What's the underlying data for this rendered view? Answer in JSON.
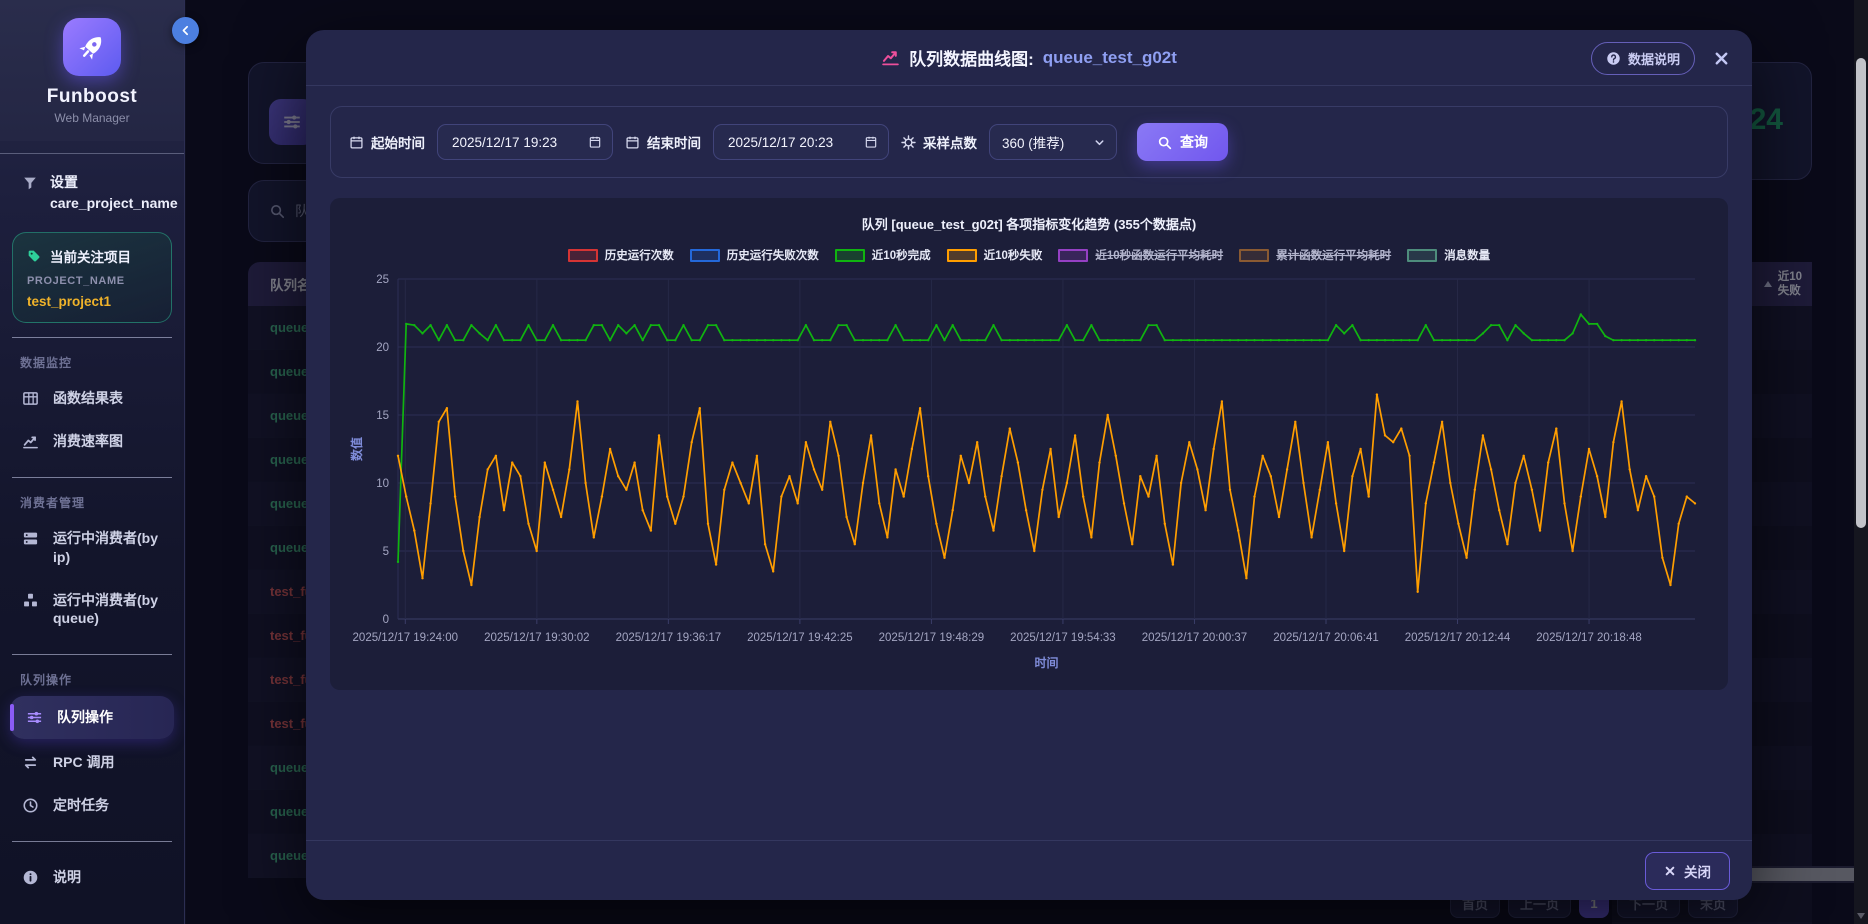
{
  "app": {
    "name": "Funboost",
    "subtitle": "Web Manager"
  },
  "sidebar": {
    "filter": {
      "line1": "设置",
      "line2": "care_project_name"
    },
    "project_card": {
      "title": "当前关注项目",
      "label": "PROJECT_NAME",
      "value": "test_project1"
    },
    "sections": [
      {
        "label": "数据监控",
        "items": [
          {
            "icon": "table",
            "label": "函数结果表"
          },
          {
            "icon": "chart-line",
            "label": "消费速率图"
          }
        ]
      },
      {
        "label": "消费者管理",
        "items": [
          {
            "icon": "server",
            "label": "运行中消费者(by ip)"
          },
          {
            "icon": "cubes",
            "label": "运行中消费者(by queue)"
          }
        ]
      },
      {
        "label": "队列操作",
        "items": [
          {
            "icon": "sliders",
            "label": "队列操作",
            "active": true
          },
          {
            "icon": "exchange",
            "label": "RPC 调用"
          },
          {
            "icon": "clock",
            "label": "定时任务"
          }
        ]
      },
      {
        "label": "",
        "items": [
          {
            "icon": "info",
            "label": "说明"
          }
        ]
      }
    ]
  },
  "background": {
    "search_text": "队列",
    "table_header": "队列名",
    "rows": [
      {
        "text": "queue",
        "color": "green"
      },
      {
        "text": "queue",
        "color": "green"
      },
      {
        "text": "queue",
        "color": "green"
      },
      {
        "text": "queue",
        "color": "green"
      },
      {
        "text": "queue",
        "color": "green"
      },
      {
        "text": "queue",
        "color": "green"
      },
      {
        "text": "test_fu",
        "color": "red"
      },
      {
        "text": "test_fu",
        "color": "red"
      },
      {
        "text": "test_fu",
        "color": "red"
      },
      {
        "text": "test_fu",
        "color": "red"
      },
      {
        "text": "queue",
        "color": "green"
      },
      {
        "text": "queue",
        "color": "green"
      },
      {
        "text": "queue",
        "color": "green"
      }
    ],
    "stat_value": "24",
    "right_col_header_line1": "近10",
    "right_col_header_line2": "失败",
    "pagination": [
      "首页",
      "上一页",
      "1",
      "下一页",
      "末页"
    ],
    "pagination_current": "1"
  },
  "modal": {
    "title": "队列数据曲线图:",
    "queue_name": "queue_test_g02t",
    "help_button": "数据说明",
    "toolbar": {
      "start_label": "起始时间",
      "start_value": "2025/12/17 19:23",
      "end_label": "结束时间",
      "end_value": "2025/12/17 20:23",
      "points_label": "采样点数",
      "points_value": "360 (推荐)",
      "query_label": "查询"
    },
    "close_label": "关闭"
  },
  "chart_data": {
    "type": "line",
    "title": "队列 [queue_test_g02t] 各项指标变化趋势 (355个数据点)",
    "xlabel": "时间",
    "ylabel": "数值",
    "ylim": [
      0,
      25
    ],
    "yticks": [
      0,
      5,
      10,
      15,
      20,
      25
    ],
    "total_points": 355,
    "grid": true,
    "legend_position": "top",
    "x_tick_labels": [
      "2025/12/17 19:24:00",
      "2025/12/17 19:30:02",
      "2025/12/17 19:36:17",
      "2025/12/17 19:42:25",
      "2025/12/17 19:48:29",
      "2025/12/17 19:54:33",
      "2025/12/17 20:00:37",
      "2025/12/17 20:06:41",
      "2025/12/17 20:12:44",
      "2025/12/17 20:18:48"
    ],
    "series": [
      {
        "name": "历史运行次数",
        "color": "#d53434",
        "struck": false,
        "values": null
      },
      {
        "name": "历史运行失败次数",
        "color": "#2468d9",
        "struck": false,
        "values": null
      },
      {
        "name": "近10秒完成",
        "color": "#10b410",
        "struck": false,
        "values": [
          4.2,
          21.7,
          21.6,
          21.0,
          21.6,
          20.5,
          21.6,
          20.5,
          20.5,
          21.6,
          21.0,
          20.5,
          21.6,
          20.5,
          20.5,
          20.5,
          21.6,
          20.5,
          20.5,
          21.6,
          20.5,
          20.5,
          20.5,
          20.5,
          21.6,
          21.6,
          20.5,
          21.6,
          21.0,
          21.6,
          20.5,
          21.6,
          21.6,
          20.5,
          20.5,
          21.6,
          20.5,
          20.5,
          21.6,
          21.6,
          20.5,
          20.5,
          20.5,
          20.5,
          20.5,
          20.5,
          20.5,
          20.5,
          20.5,
          20.5,
          21.6,
          20.5,
          20.5,
          20.5,
          21.6,
          21.6,
          20.5,
          20.5,
          20.5,
          20.5,
          20.5,
          21.6,
          20.5,
          20.5,
          20.5,
          20.5,
          21.6,
          20.5,
          21.6,
          20.5,
          20.5,
          20.5,
          20.5,
          21.6,
          20.5,
          20.5,
          20.5,
          20.5,
          20.5,
          20.5,
          20.5,
          20.5,
          21.6,
          20.5,
          20.5,
          21.6,
          20.5,
          20.5,
          20.5,
          20.5,
          20.5,
          20.5,
          21.6,
          21.6,
          20.5,
          20.5,
          20.5,
          20.5,
          20.5,
          20.5,
          20.5,
          20.5,
          20.5,
          20.5,
          20.5,
          20.5,
          20.5,
          20.5,
          20.5,
          20.5,
          20.5,
          20.5,
          20.5,
          20.5,
          20.5,
          21.6,
          21.0,
          21.6,
          20.5,
          20.5,
          20.5,
          20.5,
          20.5,
          20.5,
          20.5,
          20.5,
          21.6,
          20.5,
          20.5,
          20.5,
          20.5,
          20.5,
          20.5,
          21.0,
          21.6,
          21.6,
          20.5,
          21.6,
          21.0,
          20.5,
          20.5,
          20.5,
          20.5,
          20.5,
          21.0,
          22.4,
          21.7,
          21.7,
          20.8,
          20.5,
          20.5,
          20.5,
          20.5,
          20.5,
          20.5,
          20.5,
          20.5,
          20.5,
          20.5,
          20.5
        ]
      },
      {
        "name": "近10秒失败",
        "color": "#ff9e00",
        "struck": false,
        "values": [
          12.0,
          9.0,
          6.5,
          3.0,
          8.5,
          14.5,
          15.5,
          9.0,
          5.0,
          2.5,
          7.5,
          11.0,
          12.0,
          8.0,
          11.5,
          10.5,
          7.0,
          5.0,
          11.5,
          9.5,
          7.5,
          11.0,
          16.0,
          10.0,
          6.0,
          9.0,
          12.5,
          10.5,
          9.5,
          11.5,
          8.0,
          6.5,
          13.5,
          9.0,
          7.0,
          9.0,
          13.0,
          15.5,
          7.0,
          4.0,
          9.5,
          11.5,
          10.0,
          8.5,
          12.0,
          5.5,
          3.5,
          9.0,
          10.5,
          8.5,
          13.0,
          11.0,
          9.5,
          14.5,
          12.0,
          7.5,
          5.5,
          10.0,
          13.5,
          8.5,
          6.0,
          11.0,
          9.0,
          12.5,
          15.5,
          10.5,
          7.0,
          4.5,
          8.0,
          12.0,
          10.0,
          13.0,
          9.0,
          6.5,
          10.5,
          14.0,
          11.5,
          8.0,
          5.0,
          9.5,
          12.5,
          7.5,
          10.0,
          13.5,
          9.0,
          6.0,
          11.5,
          15.0,
          12.0,
          8.5,
          5.5,
          10.5,
          9.0,
          12.0,
          7.0,
          4.0,
          10.0,
          13.0,
          11.0,
          8.0,
          12.5,
          16.0,
          9.5,
          6.5,
          3.0,
          9.0,
          12.0,
          10.5,
          7.5,
          11.0,
          14.5,
          10.0,
          6.0,
          9.5,
          13.0,
          8.5,
          5.0,
          10.5,
          12.5,
          9.0,
          16.5,
          13.5,
          13.0,
          14.0,
          12.0,
          2.0,
          8.5,
          11.5,
          14.5,
          10.0,
          7.0,
          4.5,
          9.5,
          13.5,
          11.0,
          8.0,
          5.5,
          10.0,
          12.0,
          9.5,
          6.5,
          11.5,
          14.0,
          8.5,
          5.0,
          9.0,
          12.5,
          10.5,
          7.5,
          13.0,
          16.0,
          11.0,
          8.0,
          10.5,
          9.0,
          4.5,
          2.5,
          7.0,
          9.0,
          8.5
        ]
      },
      {
        "name": "近10秒函数运行平均耗时",
        "color": "#9540c4",
        "struck": true,
        "values": null
      },
      {
        "name": "累计函数运行平均耗时",
        "color": "#8a5a32",
        "struck": true,
        "values": null
      },
      {
        "name": "消息数量",
        "color": "#4e8d7c",
        "struck": false,
        "values": null
      }
    ]
  }
}
